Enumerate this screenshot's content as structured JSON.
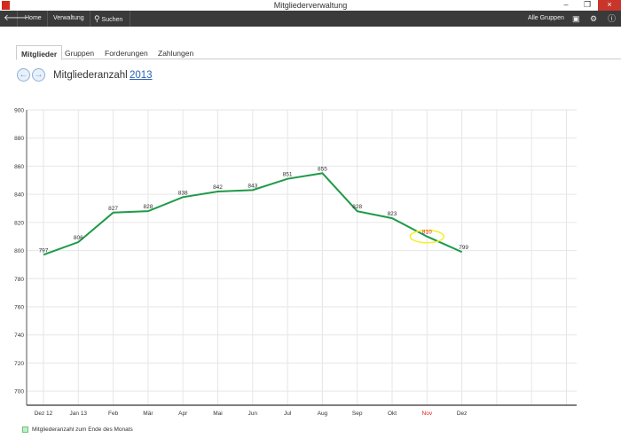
{
  "window": {
    "title": "Mitgliederverwaltung",
    "minimize": "–",
    "restore": "❐",
    "close": "×"
  },
  "toolbar": {
    "back_icon": "arrow-left-icon",
    "home": "Home",
    "verwaltung": "Verwaltung",
    "search_icon": "search-icon",
    "suchen": "Suchen",
    "alle_gruppen": "Alle Gruppen",
    "icons": [
      "book-icon",
      "gear-icon",
      "info-icon"
    ]
  },
  "tabs": [
    {
      "label": "Mitglieder",
      "active": true
    },
    {
      "label": "Gruppen"
    },
    {
      "label": "Forderungen"
    },
    {
      "label": "Zahlungen"
    }
  ],
  "header": {
    "prev": "←",
    "next": "→",
    "title": "Mitgliederanzahl",
    "year": "2013"
  },
  "chart_data": {
    "type": "line",
    "categories": [
      "Dez 12",
      "Jan 13",
      "Feb",
      "Mär",
      "Apr",
      "Mai",
      "Jun",
      "Jul",
      "Aug",
      "Sep",
      "Okt",
      "Nov",
      "Dez"
    ],
    "total_slots": 16,
    "series": [
      {
        "name": "Mitgliederanzahl zum Ende des Monats",
        "values": [
          797,
          806,
          827,
          828,
          838,
          842,
          843,
          851,
          855,
          828,
          823,
          810,
          799
        ],
        "color": "#1e9a48"
      }
    ],
    "ylim": [
      690,
      900
    ],
    "yticks": [
      700,
      720,
      740,
      760,
      780,
      800,
      820,
      840,
      860,
      880,
      900
    ],
    "highlight": {
      "category": "Nov",
      "color": "#e02020",
      "ellipse_color": "#f5ef2a"
    },
    "legend": "bottom-left",
    "grid": true
  }
}
